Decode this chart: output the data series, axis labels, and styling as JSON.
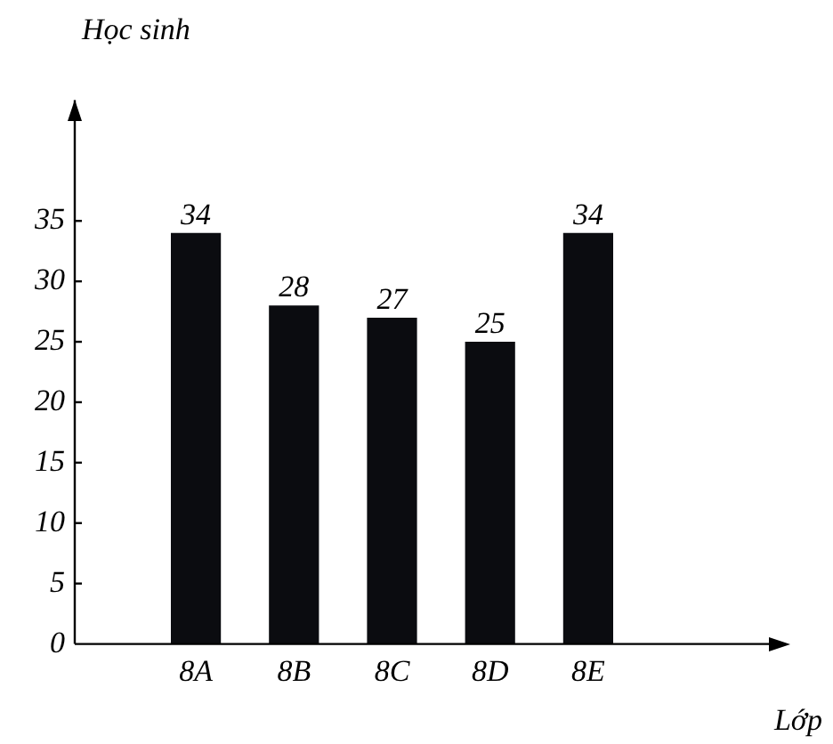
{
  "chart_data": {
    "type": "bar",
    "xlabel": "Lớp",
    "ylabel": "Học sinh",
    "categories": [
      "8A",
      "8B",
      "8C",
      "8D",
      "8E"
    ],
    "values": [
      34,
      28,
      27,
      25,
      34
    ],
    "color": "#0b0c10",
    "ylim": [
      0,
      45
    ],
    "yticks": [
      0,
      5,
      10,
      15,
      20,
      25,
      30,
      35
    ],
    "grid": false,
    "legend": false,
    "data_labels": true
  }
}
